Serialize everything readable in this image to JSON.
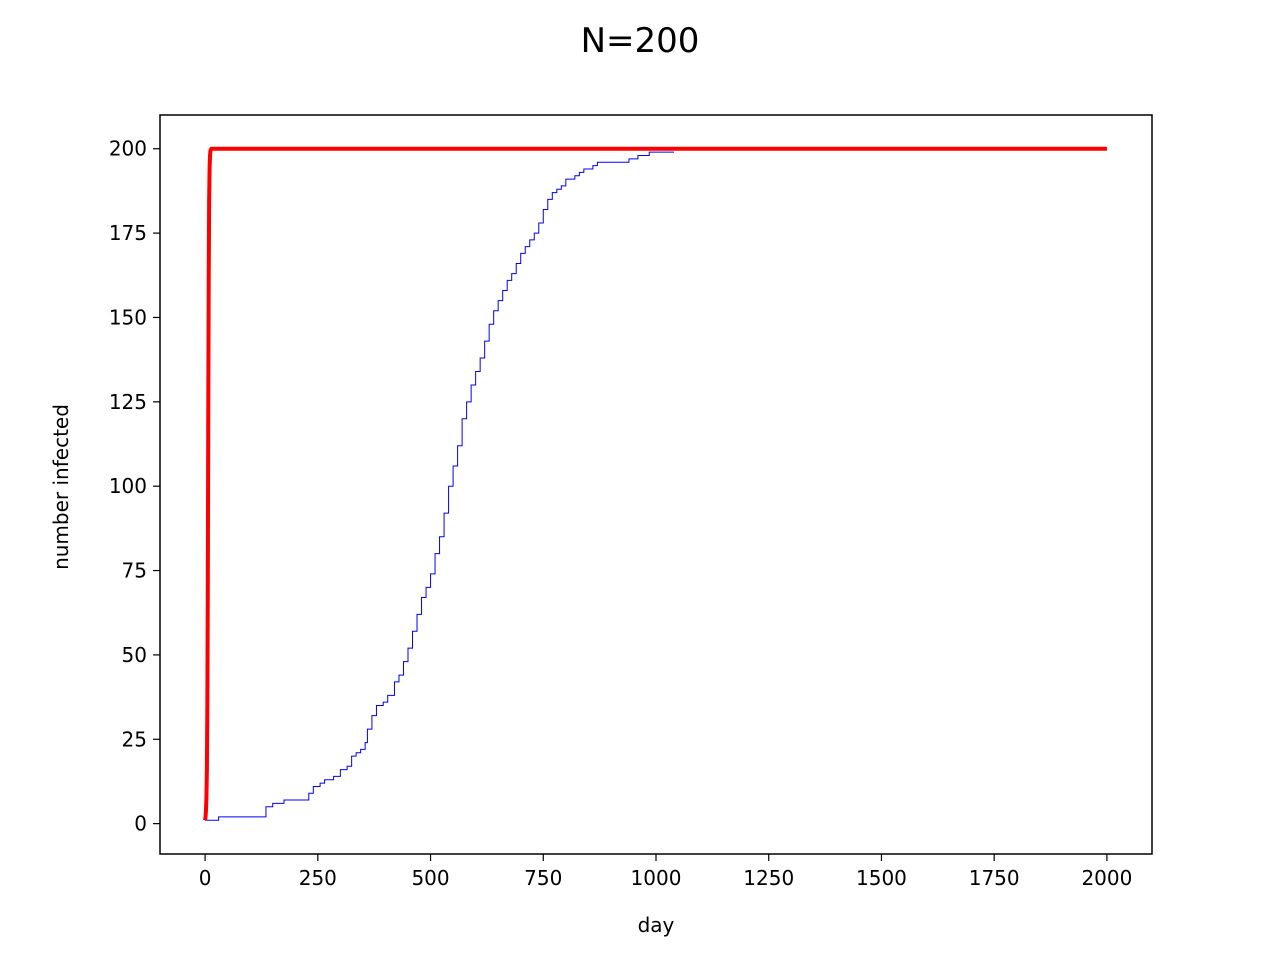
{
  "chart_data": {
    "type": "line",
    "title": "N=200",
    "xlabel": "day",
    "ylabel": "number infected",
    "xlim": [
      -100,
      2100
    ],
    "ylim": [
      -9,
      210
    ],
    "xticks": [
      0,
      250,
      500,
      750,
      1000,
      1250,
      1500,
      1750,
      2000
    ],
    "yticks": [
      0,
      25,
      50,
      75,
      100,
      125,
      150,
      175,
      200
    ],
    "grid": false,
    "series": [
      {
        "color": "#ff0000",
        "style": "smooth",
        "x": [
          0,
          1,
          2,
          3,
          4,
          5,
          6,
          7,
          8,
          9,
          10,
          11,
          12,
          14,
          16,
          20,
          30,
          100,
          500,
          1000,
          1500,
          2000
        ],
        "y": [
          1,
          2,
          4,
          8,
          16,
          35,
          70,
          120,
          160,
          185,
          194,
          198,
          199.5,
          200,
          200,
          200,
          200,
          200,
          200,
          200,
          200,
          200
        ]
      },
      {
        "color": "#0000ff",
        "style": "step",
        "x": [
          0,
          30,
          125,
          135,
          150,
          175,
          215,
          230,
          240,
          255,
          265,
          285,
          300,
          315,
          325,
          335,
          345,
          355,
          360,
          370,
          380,
          395,
          405,
          420,
          430,
          440,
          450,
          460,
          470,
          480,
          490,
          500,
          510,
          520,
          530,
          540,
          550,
          560,
          570,
          580,
          590,
          600,
          610,
          620,
          630,
          640,
          650,
          660,
          670,
          680,
          690,
          700,
          710,
          720,
          730,
          740,
          750,
          760,
          770,
          780,
          790,
          800,
          810,
          820,
          830,
          840,
          850,
          860,
          870,
          880,
          895,
          940,
          960,
          985,
          1040
        ],
        "y": [
          1,
          2,
          2,
          5,
          6,
          7,
          7,
          9,
          11,
          12,
          13,
          14,
          16,
          17,
          20,
          21,
          22,
          24,
          28,
          32,
          35,
          36,
          38,
          42,
          44,
          48,
          52,
          57,
          62,
          67,
          70,
          74,
          80,
          85,
          92,
          100,
          106,
          112,
          120,
          125,
          130,
          134,
          138,
          143,
          148,
          152,
          155,
          158,
          161,
          163,
          166,
          169,
          171,
          173,
          175,
          178,
          182,
          185,
          187,
          188,
          189,
          191,
          191,
          192,
          193,
          194,
          194,
          195,
          196,
          196,
          196,
          197,
          198,
          199,
          199
        ]
      }
    ]
  }
}
